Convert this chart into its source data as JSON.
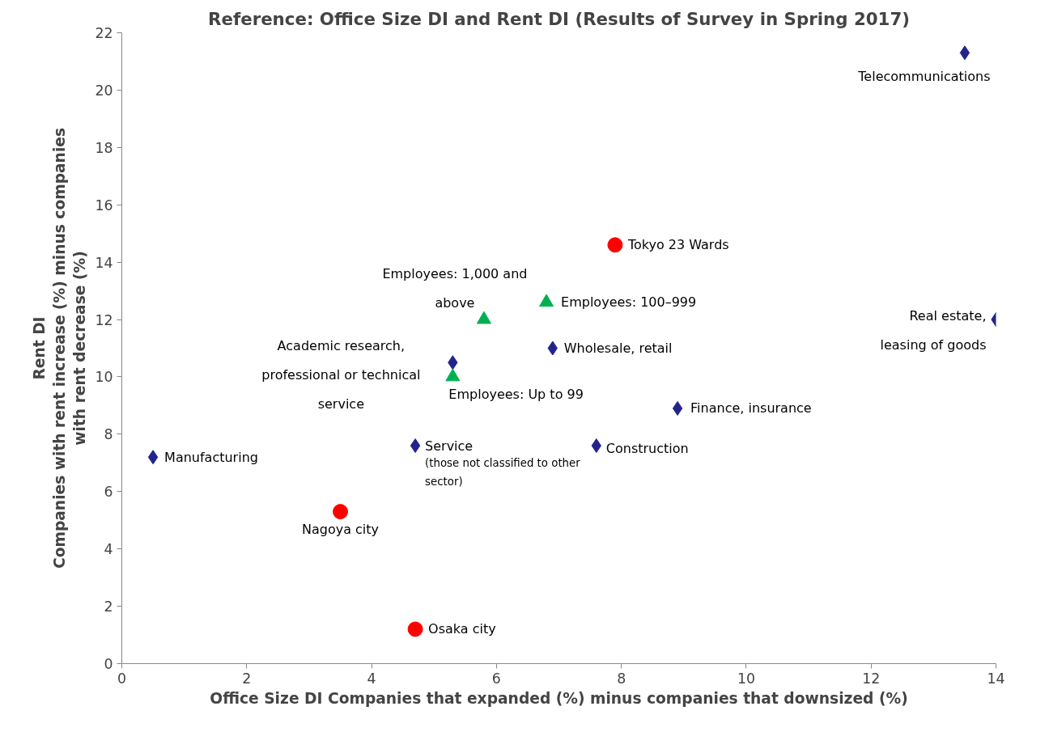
{
  "chart_data": {
    "type": "scatter",
    "title": "Reference: Office Size DI and Rent DI (Results of Survey in Spring 2017)",
    "xlabel": "Office Size DI Companies that expanded (%) minus companies that downsized (%)",
    "ylabel": "Rent DI\nCompanies with rent increase (%) minus companies\nwith rent decrease (%)",
    "xlim": [
      0,
      14
    ],
    "xticks": [
      0,
      2,
      4,
      6,
      8,
      10,
      12,
      14
    ],
    "ylim": [
      0,
      22
    ],
    "yticks": [
      0,
      2,
      4,
      6,
      8,
      10,
      12,
      14,
      16,
      18,
      20,
      22
    ],
    "grid": false,
    "series": [
      {
        "color": "#23238e",
        "marker": "diamond",
        "x": [
          13.5,
          14.0,
          6.9,
          8.9,
          7.6,
          4.7,
          0.5,
          5.3
        ],
        "values": [
          21.3,
          12.0,
          11.0,
          8.9,
          7.6,
          7.6,
          7.2,
          10.5
        ]
      },
      {
        "color": "#00b050",
        "marker": "triangle",
        "x": [
          5.8,
          6.8,
          5.3
        ],
        "values": [
          12.0,
          12.6,
          10.0
        ]
      },
      {
        "color": "#ff0000",
        "marker": "circle",
        "x": [
          7.9,
          3.5,
          4.7
        ],
        "values": [
          14.6,
          5.3,
          1.2
        ]
      }
    ],
    "annotations": [
      {
        "text": "Telecommunications",
        "x": 13.5,
        "y": 21.3
      },
      {
        "text": "Real estate,\nleasing of goods",
        "x": 14.0,
        "y": 12.0
      },
      {
        "text": "Wholesale, retail",
        "x": 6.9,
        "y": 11.0
      },
      {
        "text": "Finance, insurance",
        "x": 8.9,
        "y": 8.9
      },
      {
        "text": "Construction",
        "x": 7.6,
        "y": 7.6
      },
      {
        "text": "Service",
        "x": 4.7,
        "y": 7.6
      },
      {
        "text": "(those not classified to other\nsector)",
        "x": 4.7,
        "y": 7.6
      },
      {
        "text": "Manufacturing",
        "x": 0.5,
        "y": 7.2
      },
      {
        "text": "Academic research,\nprofessional or technical\nservice",
        "x": 5.3,
        "y": 10.5
      },
      {
        "text": "Employees: 1,000 and\nabove",
        "x": 5.8,
        "y": 12.0
      },
      {
        "text": "Employees: 100–999",
        "x": 6.8,
        "y": 12.6
      },
      {
        "text": "Employees: Up to 99",
        "x": 5.3,
        "y": 10.0
      },
      {
        "text": "Tokyo 23 Wards",
        "x": 7.9,
        "y": 14.6
      },
      {
        "text": "Nagoya city",
        "x": 3.5,
        "y": 5.3
      },
      {
        "text": "Osaka city",
        "x": 4.7,
        "y": 1.2
      }
    ]
  }
}
